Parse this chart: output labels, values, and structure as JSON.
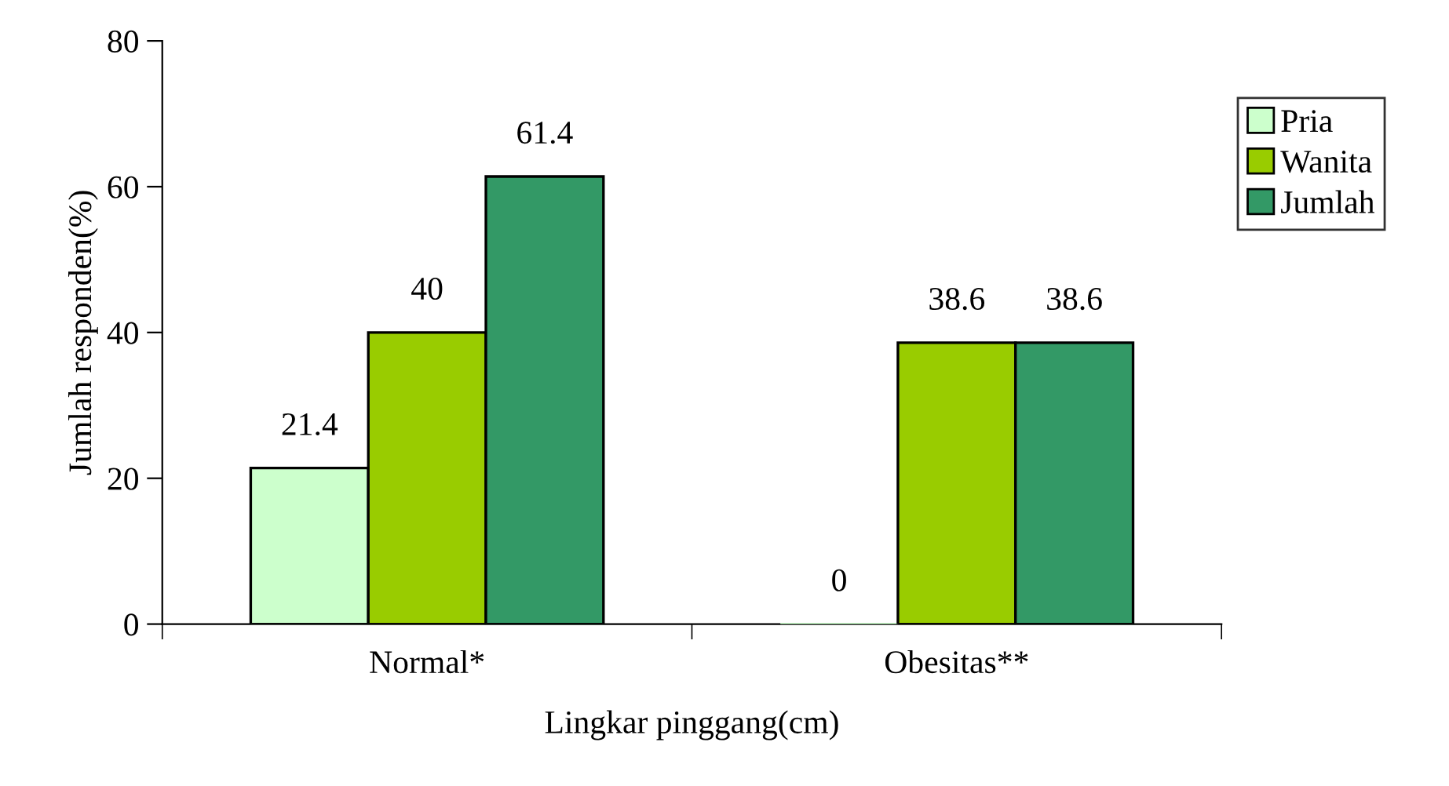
{
  "chart_data": {
    "type": "bar",
    "xlabel": "Lingkar pinggang(cm)",
    "ylabel": "Jumlah responden(%)",
    "categories": [
      "Normal*",
      "Obesitas**"
    ],
    "series": [
      {
        "name": "Pria",
        "color": "#ccffcc",
        "values": [
          21.4,
          0
        ]
      },
      {
        "name": "Wanita",
        "color": "#99cc00",
        "values": [
          40,
          38.6
        ]
      },
      {
        "name": "Jumlah",
        "color": "#339966",
        "values": [
          61.4,
          38.6
        ]
      }
    ],
    "ylim": [
      0,
      80
    ],
    "yticks": [
      0,
      20,
      40,
      60,
      80
    ],
    "data_labels": true,
    "legend": "top right",
    "grid": false
  }
}
